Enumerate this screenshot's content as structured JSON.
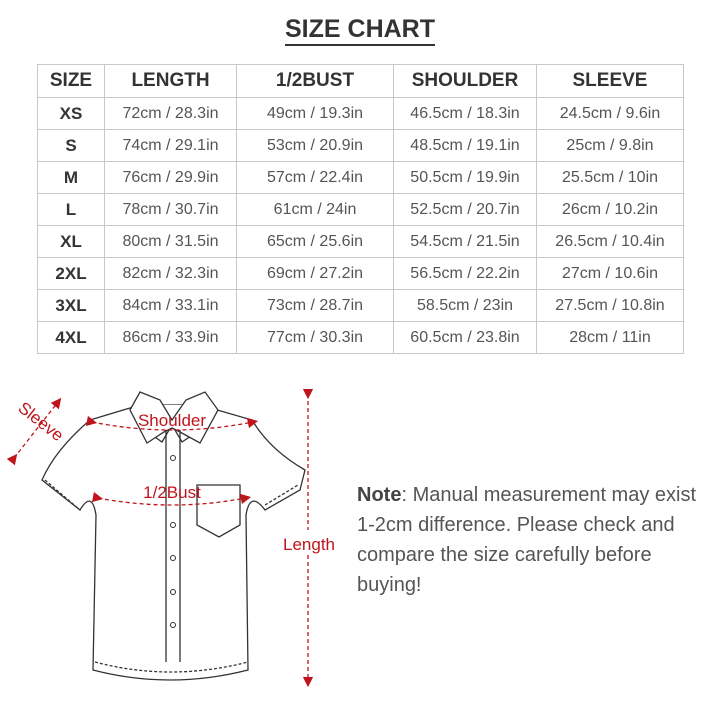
{
  "title": "SIZE CHART",
  "table": {
    "headers": [
      "SIZE",
      "LENGTH",
      "1/2BUST",
      "SHOULDER",
      "SLEEVE"
    ],
    "rows": [
      [
        "XS",
        "72cm / 28.3in",
        "49cm / 19.3in",
        "46.5cm / 18.3in",
        "24.5cm / 9.6in"
      ],
      [
        "S",
        "74cm / 29.1in",
        "53cm / 20.9in",
        "48.5cm / 19.1in",
        "25cm / 9.8in"
      ],
      [
        "M",
        "76cm / 29.9in",
        "57cm / 22.4in",
        "50.5cm / 19.9in",
        "25.5cm / 10in"
      ],
      [
        "L",
        "78cm / 30.7in",
        "61cm / 24in",
        "52.5cm / 20.7in",
        "26cm / 10.2in"
      ],
      [
        "XL",
        "80cm / 31.5in",
        "65cm / 25.6in",
        "54.5cm / 21.5in",
        "26.5cm / 10.4in"
      ],
      [
        "2XL",
        "82cm / 32.3in",
        "69cm / 27.2in",
        "56.5cm / 22.2in",
        "27cm / 10.6in"
      ],
      [
        "3XL",
        "84cm / 33.1in",
        "73cm / 28.7in",
        "58.5cm / 23in",
        "27.5cm / 10.8in"
      ],
      [
        "4XL",
        "86cm / 33.9in",
        "77cm / 30.3in",
        "60.5cm / 23.8in",
        "28cm / 11in"
      ]
    ]
  },
  "diagram": {
    "labels": {
      "sleeve": "Sleeve",
      "shoulder": "Shoulder",
      "bust": "1/2Bust",
      "length": "Length"
    },
    "accent_color": "#c0141c"
  },
  "note": {
    "label": "Note",
    "text": ": Manual measurement may exist 1-2cm difference. Please check and compare the size carefully before buying!"
  }
}
